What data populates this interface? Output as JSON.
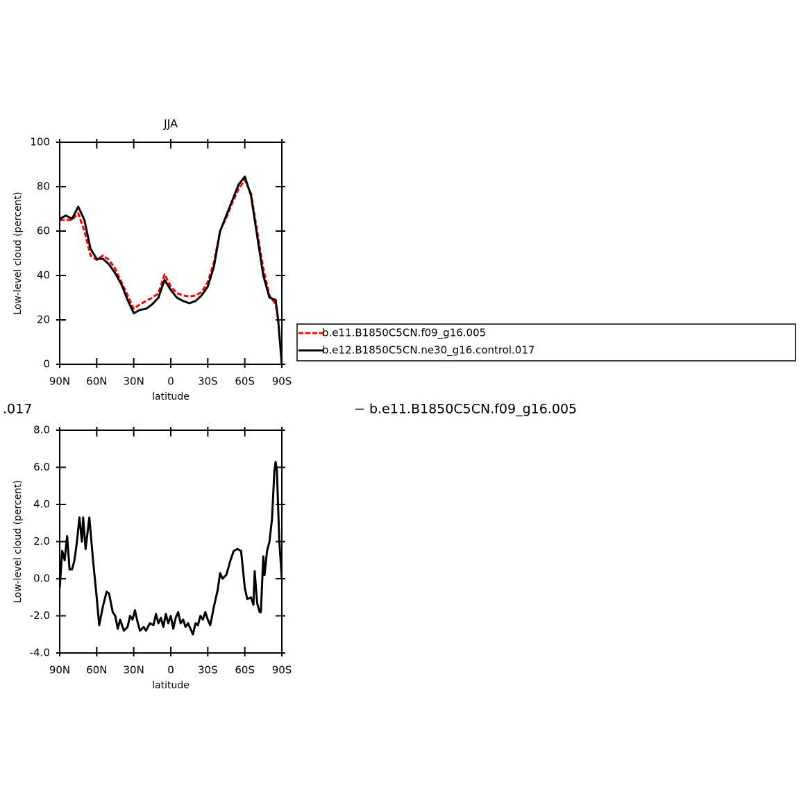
{
  "chart_data": [
    {
      "type": "line",
      "title": "JJA",
      "ylabel": "Low-level cloud (percent)",
      "xlabel": "latitude",
      "x": [
        90,
        85,
        80,
        75,
        70,
        65,
        60,
        55,
        50,
        45,
        40,
        35,
        30,
        25,
        20,
        15,
        10,
        5,
        0,
        -5,
        -10,
        -15,
        -20,
        -25,
        -30,
        -35,
        -40,
        -45,
        -50,
        -55,
        -60,
        -65,
        -70,
        -75,
        -80,
        -85,
        -87,
        -90
      ],
      "xlim": [
        90,
        -90
      ],
      "xticks": [
        {
          "value": 90,
          "label": "90N"
        },
        {
          "value": 60,
          "label": "60N"
        },
        {
          "value": 30,
          "label": "30N"
        },
        0,
        {
          "value": -30,
          "label": "30S"
        },
        {
          "value": -60,
          "label": "60S"
        },
        {
          "value": -90,
          "label": "90S"
        }
      ],
      "ylim": [
        0,
        100
      ],
      "yticks": [
        0,
        20,
        40,
        60,
        80,
        100
      ],
      "legend": "outside right",
      "series": [
        {
          "name": "b.e11.B1850C5CN.f09_g16.005",
          "color": "#ff0000",
          "dashed": true,
          "values": [
            65,
            65,
            65,
            68,
            60,
            49,
            47,
            49,
            47,
            43,
            37,
            31,
            25,
            27,
            28.5,
            30,
            32,
            40.5,
            35,
            32,
            31,
            30.5,
            31,
            32.5,
            37,
            46,
            60,
            66,
            73,
            79,
            83,
            77,
            60,
            43,
            31,
            27,
            20,
            0
          ]
        },
        {
          "name": "b.e12.B1850C5CN.ne30_g16.control.017",
          "color": "#000000",
          "dashed": false,
          "values": [
            65.5,
            67,
            65.5,
            71,
            65,
            52,
            47.5,
            47.5,
            45,
            41,
            36,
            29,
            23,
            24.5,
            25,
            27,
            30,
            38,
            33.5,
            30,
            28.5,
            27.5,
            28.5,
            31,
            35,
            44,
            60,
            67,
            74,
            81,
            84.5,
            76,
            58,
            40,
            30,
            29,
            20,
            0
          ]
        }
      ]
    },
    {
      "type": "line",
      "ylabel": "Low-level cloud (percent)",
      "xlabel": "latitude",
      "x": [
        90,
        88,
        86,
        84,
        82,
        80,
        78,
        76,
        74,
        72,
        71,
        69,
        66,
        63,
        60,
        58,
        55,
        52,
        50,
        47,
        45,
        43,
        41,
        38,
        35,
        33,
        31,
        29,
        27,
        25,
        22,
        20,
        17,
        14,
        12,
        10,
        8,
        6,
        4,
        2,
        0,
        -2,
        -4,
        -6,
        -8,
        -10,
        -12,
        -14,
        -16,
        -18,
        -20,
        -22,
        -24,
        -26,
        -28,
        -30,
        -32,
        -35,
        -38,
        -40,
        -42,
        -45,
        -48,
        -51,
        -54,
        -57,
        -60,
        -62,
        -65,
        -67,
        -68,
        -70,
        -72,
        -73,
        -75,
        -76,
        -78,
        -80,
        -82,
        -84,
        -85,
        -86,
        -88,
        -90
      ],
      "xlim": [
        90,
        -90
      ],
      "xticks": [
        {
          "value": 90,
          "label": "90N"
        },
        {
          "value": 60,
          "label": "60N"
        },
        {
          "value": 30,
          "label": "30N"
        },
        0,
        {
          "value": -30,
          "label": "30S"
        },
        {
          "value": -60,
          "label": "60S"
        },
        {
          "value": -90,
          "label": "90S"
        }
      ],
      "ylim": [
        -4,
        8
      ],
      "yticks": [
        {
          "value": -4,
          "label": "-4.0"
        },
        {
          "value": -2,
          "label": "-2.0"
        },
        {
          "value": 0,
          "label": "0.0"
        },
        {
          "value": 2,
          "label": "2.0"
        },
        {
          "value": 4,
          "label": "4.0"
        },
        {
          "value": 6,
          "label": "6.0"
        },
        {
          "value": 8,
          "label": "8.0"
        }
      ],
      "series": [
        {
          "color": "#000000",
          "dashed": false,
          "values": [
            -0.5,
            1.5,
            1.0,
            2.3,
            0.5,
            0.5,
            1.0,
            2.0,
            3.3,
            2.0,
            3.3,
            1.6,
            3.3,
            1.0,
            -1.0,
            -2.5,
            -1.5,
            -0.7,
            -0.8,
            -1.8,
            -2.0,
            -2.7,
            -2.2,
            -2.8,
            -2.6,
            -2.0,
            -2.2,
            -1.7,
            -2.3,
            -2.8,
            -2.6,
            -2.8,
            -2.4,
            -2.5,
            -1.9,
            -2.4,
            -2.1,
            -2.6,
            -1.9,
            -2.4,
            -2.0,
            -2.7,
            -2.1,
            -1.8,
            -2.4,
            -2.2,
            -2.6,
            -2.4,
            -2.7,
            -3.0,
            -2.4,
            -2.5,
            -2.0,
            -2.2,
            -1.8,
            -2.2,
            -2.5,
            -1.5,
            -0.6,
            0.3,
            0.0,
            0.2,
            0.9,
            1.5,
            1.6,
            1.5,
            -0.5,
            -1.1,
            -1.0,
            -1.4,
            0.4,
            -1.3,
            -1.8,
            -1.8,
            1.2,
            0.2,
            1.5,
            2.0,
            3.2,
            5.8,
            6.3,
            5.8,
            2.0,
            0.0
          ]
        }
      ]
    }
  ],
  "annotations": [
    ".017",
    "− b.e11.B1850C5CN.f09_g16.005"
  ]
}
